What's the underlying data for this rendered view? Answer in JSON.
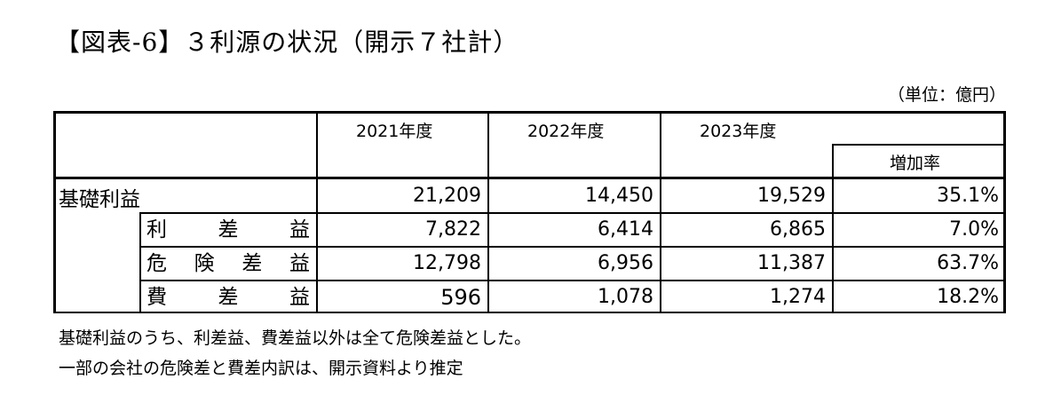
{
  "title": "【図表-6】３利源の状況（開示７社計）",
  "unit": "（単位：億円）",
  "headers": {
    "y2021": "2021年度",
    "y2022": "2022年度",
    "y2023": "2023年度",
    "rate": "増加率"
  },
  "rows": [
    {
      "label": "基礎利益",
      "v2021": "21,209",
      "v2022": "14,450",
      "v2023": "19,529",
      "rate": "35.1%"
    },
    {
      "label": "利差益",
      "v2021": "7,822",
      "v2022": "6,414",
      "v2023": "6,865",
      "rate": "7.0%"
    },
    {
      "label": "危険差益",
      "v2021": "12,798",
      "v2022": "6,956",
      "v2023": "11,387",
      "rate": "63.7%"
    },
    {
      "label": "費差益",
      "v2021": "596",
      "v2022": "1,078",
      "v2023": "1,274",
      "rate": "18.2%"
    }
  ],
  "notes": [
    "基礎利益のうち、利差益、費差益以外は全て危険差益とした。",
    "一部の会社の危険差と費差内訳は、開示資料より推定"
  ]
}
